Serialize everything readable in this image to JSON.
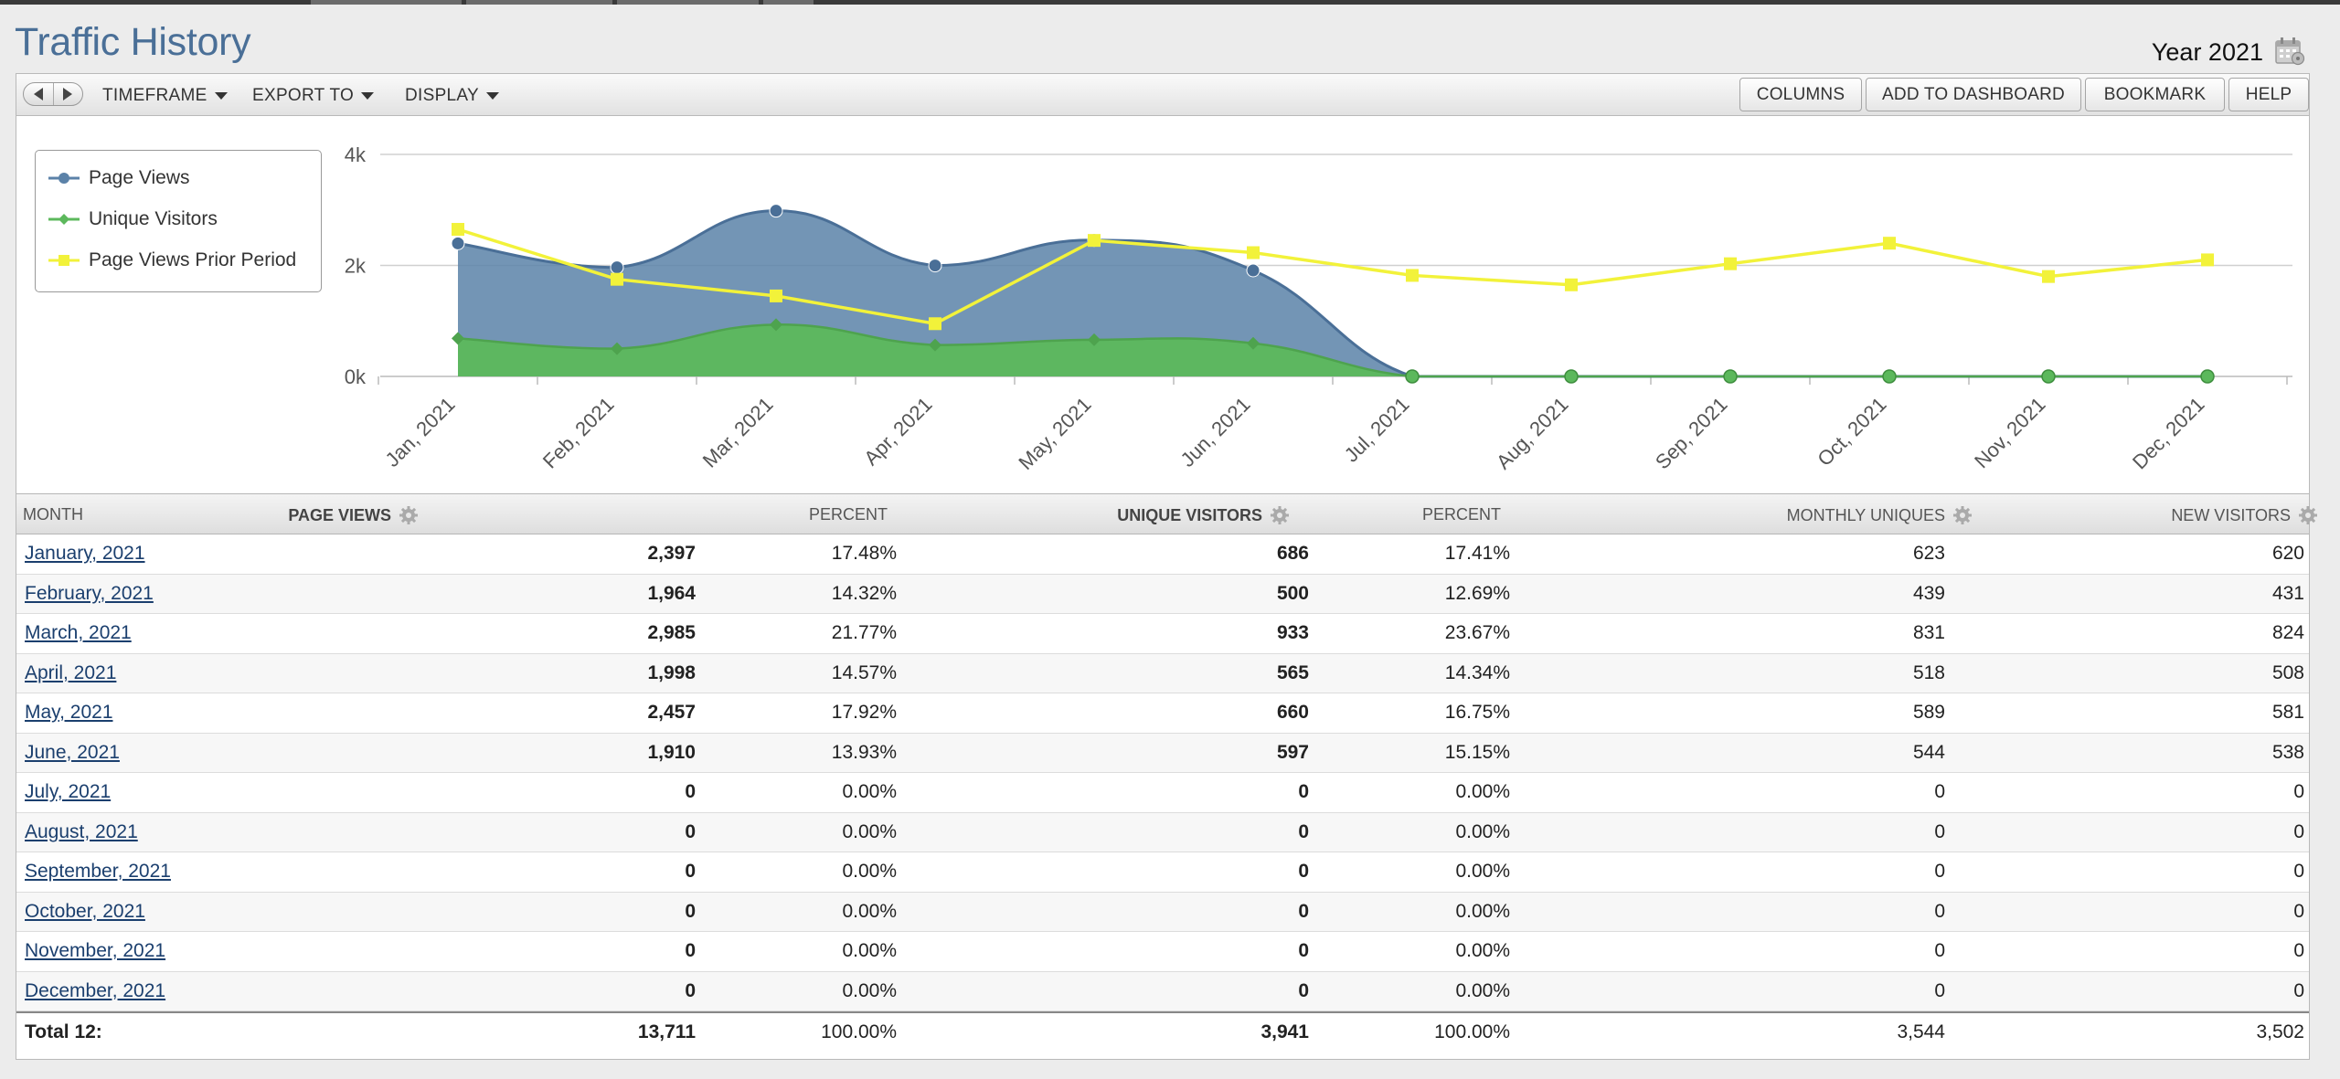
{
  "page": {
    "title": "Traffic History",
    "year_label": "Year 2021"
  },
  "toolbar": {
    "menus": [
      "TIMEFRAME",
      "EXPORT TO",
      "DISPLAY"
    ],
    "buttons": [
      "COLUMNS",
      "ADD TO DASHBOARD",
      "BOOKMARK",
      "HELP"
    ]
  },
  "colors": {
    "page_views": "#5b82a8",
    "unique_visitors": "#5cb85c",
    "prior_period": "#f2f23a",
    "title": "#4a6f97"
  },
  "chart_data": {
    "type": "area",
    "categories": [
      "Jan, 2021",
      "Feb, 2021",
      "Mar, 2021",
      "Apr, 2021",
      "May, 2021",
      "Jun, 2021",
      "Jul, 2021",
      "Aug, 2021",
      "Sep, 2021",
      "Oct, 2021",
      "Nov, 2021",
      "Dec, 2021"
    ],
    "y_ticks": [
      "0k",
      "2k",
      "4k"
    ],
    "ylim": [
      0,
      4000
    ],
    "legend_position": "top-left",
    "series": [
      {
        "name": "Page Views",
        "values": [
          2397,
          1964,
          2985,
          1998,
          2457,
          1910,
          0,
          0,
          0,
          0,
          0,
          0
        ],
        "style": "area-spline",
        "marker": "circle"
      },
      {
        "name": "Unique Visitors",
        "values": [
          686,
          500,
          933,
          565,
          660,
          597,
          0,
          0,
          0,
          0,
          0,
          0
        ],
        "style": "area",
        "marker": "diamond"
      },
      {
        "name": "Page Views Prior Period",
        "values": [
          2650,
          1750,
          1450,
          950,
          2450,
          2230,
          1820,
          1650,
          2030,
          2400,
          1800,
          2100
        ],
        "style": "line",
        "marker": "square"
      }
    ]
  },
  "table": {
    "headers": [
      "MONTH",
      "PAGE VIEWS",
      "PERCENT",
      "UNIQUE VISITORS",
      "PERCENT",
      "MONTHLY UNIQUES",
      "NEW VISITORS"
    ],
    "rows": [
      [
        "January, 2021",
        "2,397",
        "17.48%",
        "686",
        "17.41%",
        "623",
        "620"
      ],
      [
        "February, 2021",
        "1,964",
        "14.32%",
        "500",
        "12.69%",
        "439",
        "431"
      ],
      [
        "March, 2021",
        "2,985",
        "21.77%",
        "933",
        "23.67%",
        "831",
        "824"
      ],
      [
        "April, 2021",
        "1,998",
        "14.57%",
        "565",
        "14.34%",
        "518",
        "508"
      ],
      [
        "May, 2021",
        "2,457",
        "17.92%",
        "660",
        "16.75%",
        "589",
        "581"
      ],
      [
        "June, 2021",
        "1,910",
        "13.93%",
        "597",
        "15.15%",
        "544",
        "538"
      ],
      [
        "July, 2021",
        "0",
        "0.00%",
        "0",
        "0.00%",
        "0",
        "0"
      ],
      [
        "August, 2021",
        "0",
        "0.00%",
        "0",
        "0.00%",
        "0",
        "0"
      ],
      [
        "September, 2021",
        "0",
        "0.00%",
        "0",
        "0.00%",
        "0",
        "0"
      ],
      [
        "October, 2021",
        "0",
        "0.00%",
        "0",
        "0.00%",
        "0",
        "0"
      ],
      [
        "November, 2021",
        "0",
        "0.00%",
        "0",
        "0.00%",
        "0",
        "0"
      ],
      [
        "December, 2021",
        "0",
        "0.00%",
        "0",
        "0.00%",
        "0",
        "0"
      ]
    ],
    "total": [
      "Total 12:",
      "13,711",
      "100.00%",
      "3,941",
      "100.00%",
      "3,544",
      "3,502"
    ]
  }
}
